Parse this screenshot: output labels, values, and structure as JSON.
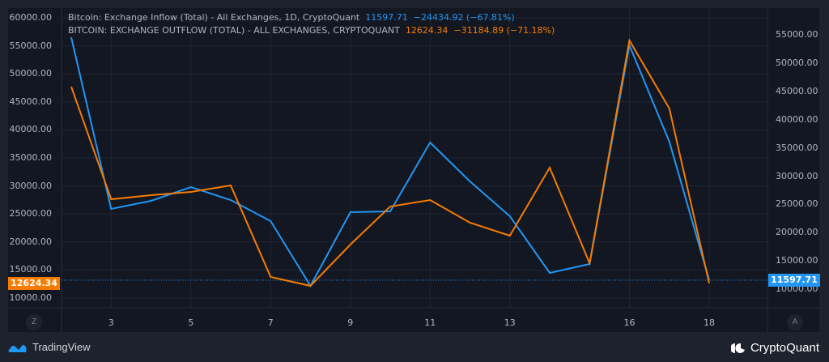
{
  "legend": {
    "inflow": {
      "name": "Bitcoin: Exchange Inflow (Total) - All Exchanges, 1D, CryptoQuant",
      "value": "11597.71",
      "change": "−24434.92 (−67.81%)"
    },
    "outflow": {
      "name": "BITCOIN: EXCHANGE OUTFLOW (TOTAL) - ALL EXCHANGES, CRYPTOQUANT",
      "value": "12624.34",
      "change": "−31184.89 (−71.18%)"
    }
  },
  "axes": {
    "left_ticks": [
      "60000.00",
      "55000.00",
      "50000.00",
      "45000.00",
      "40000.00",
      "35000.00",
      "30000.00",
      "25000.00",
      "20000.00",
      "15000.00",
      "10000.00"
    ],
    "right_ticks": [
      "55000.00",
      "50000.00",
      "45000.00",
      "40000.00",
      "35000.00",
      "30000.00",
      "25000.00",
      "20000.00",
      "15000.00",
      "10000.00"
    ],
    "x_ticks": [
      "3",
      "5",
      "7",
      "9",
      "11",
      "13",
      "16",
      "18"
    ],
    "left_price_tag": "12624.34",
    "right_price_tag": "11597.71",
    "left_scale_button": "Z",
    "right_scale_button": "A"
  },
  "branding": {
    "left": "TradingView",
    "right": "CryptoQuant"
  },
  "colors": {
    "inflow": "#2196f3",
    "outflow": "#f57c00",
    "background": "#131722",
    "grid": "#222633"
  },
  "chart_data": {
    "type": "line",
    "title": "Bitcoin Exchange Inflow vs Outflow (Total) - All Exchanges",
    "xlabel": "",
    "ylabel": "",
    "x": [
      2,
      3,
      4,
      5,
      6,
      7,
      8,
      9,
      10,
      11,
      12,
      13,
      14,
      15,
      16,
      17,
      18
    ],
    "series": [
      {
        "name": "Bitcoin: Exchange Inflow (Total) - All Exchanges, 1D, CryptoQuant",
        "axis": "right",
        "color": "#2196f3",
        "values": [
          54570,
          24200,
          25630,
          28060,
          25770,
          22050,
          10590,
          23620,
          23770,
          35940,
          29070,
          22910,
          12880,
          14450,
          53140,
          36090,
          11597.71
        ]
      },
      {
        "name": "BITCOIN: EXCHANGE OUTFLOW (TOTAL) - ALL EXCHANGES, CRYPTOQUANT",
        "axis": "left",
        "color": "#f57c00",
        "values": [
          47700,
          27630,
          28350,
          28930,
          30090,
          13760,
          12170,
          19540,
          26330,
          27480,
          23440,
          21130,
          33270,
          16210,
          55950,
          43820,
          12624.34
        ]
      }
    ],
    "ylim_left": [
      8000,
      62000
    ],
    "ylim_right": [
      8000,
      58000
    ],
    "grid": true,
    "legend_position": "top-left"
  }
}
